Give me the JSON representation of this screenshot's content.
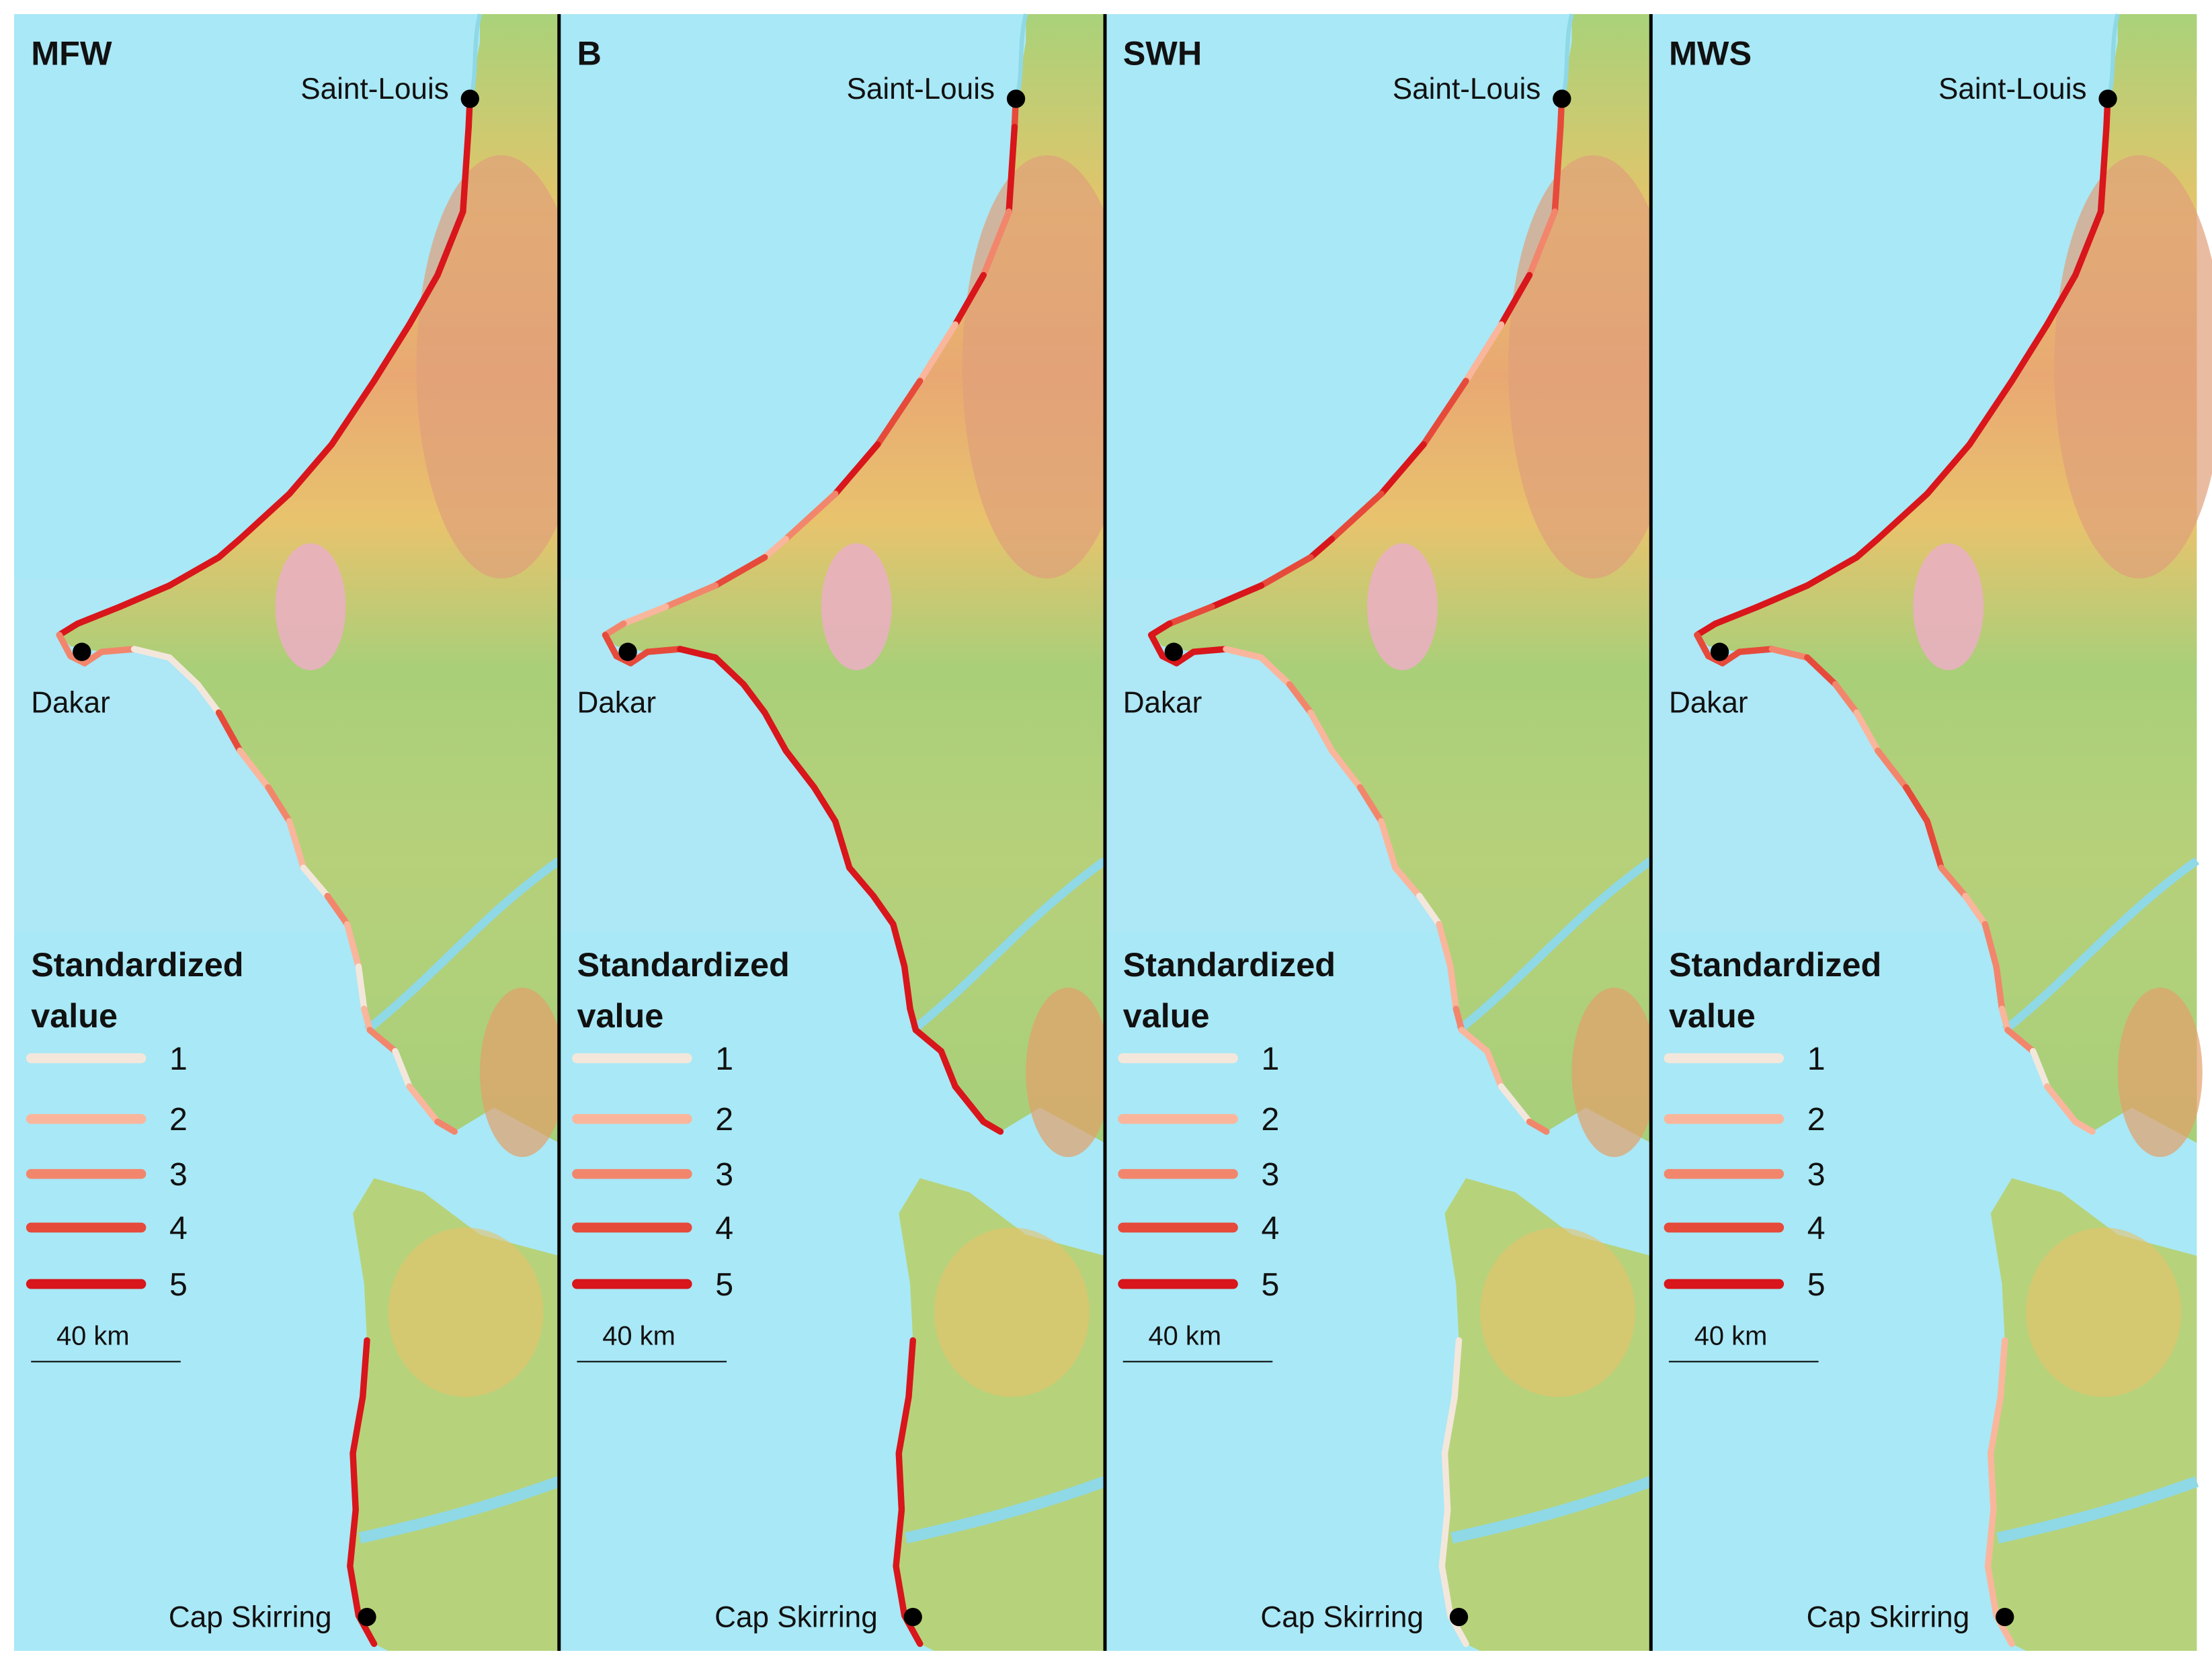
{
  "panels": [
    {
      "title": "MFW",
      "cities": [
        "Saint-Louis",
        "Dakar",
        "Cap Skirring"
      ]
    },
    {
      "title": "B",
      "cities": [
        "Saint-Louis",
        "Dakar",
        "Cap Skirring"
      ]
    },
    {
      "title": "SWH",
      "cities": [
        "Saint-Louis",
        "Dakar",
        "Cap Skirring"
      ]
    },
    {
      "title": "MWS",
      "cities": [
        "Saint-Louis",
        "Dakar",
        "Cap Skirring"
      ]
    }
  ],
  "legend": {
    "title": "Standardized value",
    "items": [
      {
        "value": 1,
        "color": "#f3e7dc"
      },
      {
        "value": 2,
        "color": "#f9b69c"
      },
      {
        "value": 3,
        "color": "#f2866c"
      },
      {
        "value": 4,
        "color": "#e64a3b"
      },
      {
        "value": 5,
        "color": "#d8161b"
      }
    ]
  },
  "scale_bar": "40 km"
}
